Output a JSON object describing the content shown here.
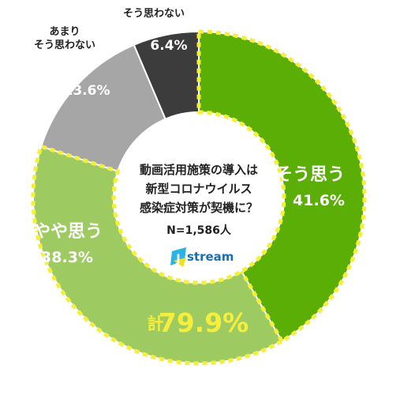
{
  "chart_data": {
    "type": "pie",
    "title": "",
    "center_text": [
      "動画活用施策の導入は",
      "新型コロナウイルス",
      "感染症対策が契機に？"
    ],
    "sample": "N=1,586人",
    "categories": [
      "そう思う",
      "やや思う",
      "あまり\nそう思わない",
      "そう思わない"
    ],
    "category_lines": [
      [
        "そう思う"
      ],
      [
        "やや思う"
      ],
      [
        "あまり",
        "そう思わない"
      ],
      [
        "そう思わない"
      ]
    ],
    "values": [
      41.6,
      38.3,
      13.6,
      6.4
    ],
    "value_labels": [
      "41.6%",
      "38.3%",
      "13.6%",
      "6.4%"
    ],
    "colors": [
      "#5aae06",
      "#9dcb62",
      "#a6a6a6",
      "#3c3c3c"
    ],
    "total_prefix": "計",
    "total_value": "79.9%",
    "highlight_color": "#f5ee3a"
  },
  "logo": {
    "text": "stream",
    "letter": "J"
  }
}
